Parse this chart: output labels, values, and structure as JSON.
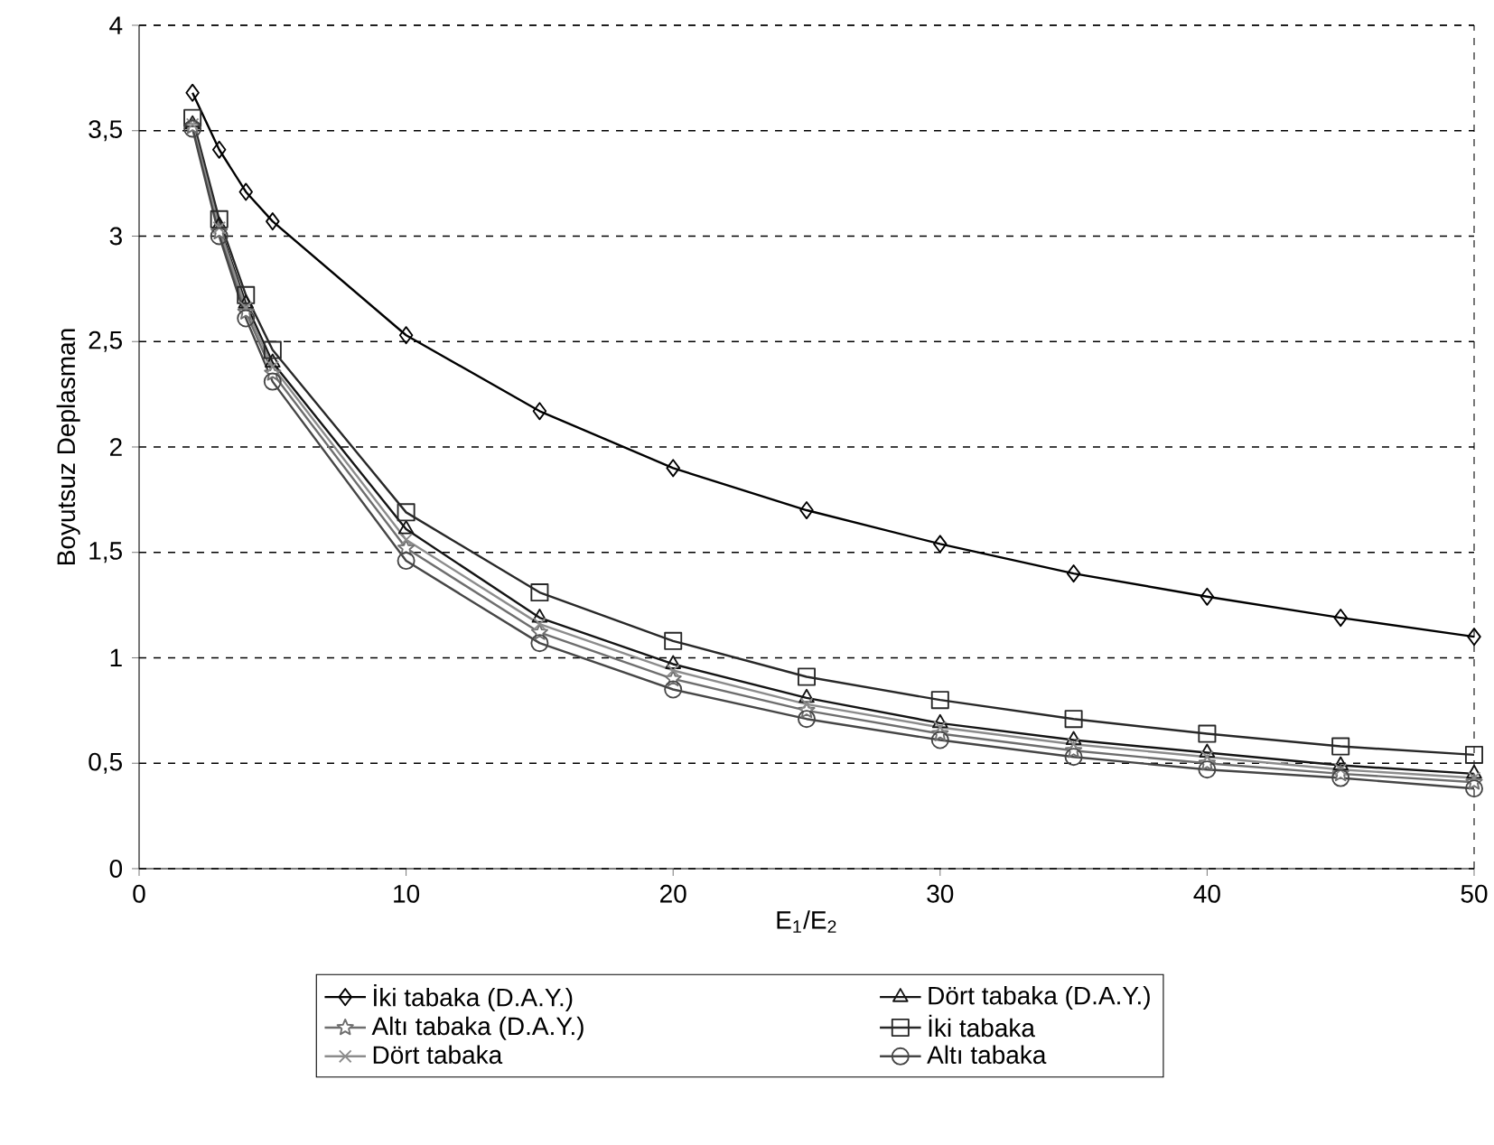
{
  "chart_data": {
    "type": "line",
    "xlabel": "E$_{1}$/E$_{2}$",
    "ylabel": "Boyutsuz Deplasman",
    "x": [
      2,
      3,
      4,
      5,
      10,
      15,
      20,
      25,
      30,
      35,
      40,
      45,
      50
    ],
    "series": [
      {
        "name": "İki tabaka (D.A.Y.)",
        "color": "#000000",
        "marker": "diamond",
        "values": [
          3.68,
          3.41,
          3.21,
          3.07,
          2.53,
          2.17,
          1.9,
          1.7,
          1.54,
          1.4,
          1.29,
          1.19,
          1.1
        ]
      },
      {
        "name": "Dört tabaka (D.A.Y.)",
        "color": "#141414",
        "marker": "triangle",
        "values": [
          3.53,
          3.05,
          2.68,
          2.4,
          1.61,
          1.19,
          0.97,
          0.81,
          0.69,
          0.61,
          0.55,
          0.49,
          0.45
        ]
      },
      {
        "name": "Altı tabaka (D.A.Y.)",
        "color": "#6e6e6e",
        "marker": "star",
        "values": [
          3.52,
          3.02,
          2.64,
          2.35,
          1.52,
          1.12,
          0.9,
          0.75,
          0.64,
          0.56,
          0.5,
          0.45,
          0.41
        ]
      },
      {
        "name": "İki tabaka",
        "color": "#282828",
        "marker": "square",
        "values": [
          3.56,
          3.08,
          2.72,
          2.46,
          1.69,
          1.31,
          1.08,
          0.91,
          0.8,
          0.71,
          0.64,
          0.58,
          0.54
        ]
      },
      {
        "name": "Dört tabaka",
        "color": "#8c8c8c",
        "marker": "cross",
        "values": [
          3.53,
          3.04,
          2.66,
          2.38,
          1.56,
          1.16,
          0.94,
          0.78,
          0.67,
          0.59,
          0.53,
          0.47,
          0.43
        ]
      },
      {
        "name": "Altı tabaka",
        "color": "#464646",
        "marker": "circle",
        "values": [
          3.51,
          3.0,
          2.61,
          2.31,
          1.46,
          1.07,
          0.85,
          0.71,
          0.61,
          0.53,
          0.47,
          0.43,
          0.38
        ]
      }
    ],
    "xlim": [
      0,
      50
    ],
    "xticks": [
      0,
      10,
      20,
      30,
      40,
      50
    ],
    "ylim": [
      0,
      4
    ],
    "yticks": [
      0,
      {
        "value": 0.5,
        "label": "0,5"
      },
      1,
      {
        "value": 1.5,
        "label": "1,5"
      },
      2,
      {
        "value": 2.5,
        "label": "2,5"
      },
      3,
      {
        "value": 3.5,
        "label": "3,5"
      },
      4
    ],
    "grid": "y",
    "legend": "bottom",
    "line_style": "solid"
  }
}
